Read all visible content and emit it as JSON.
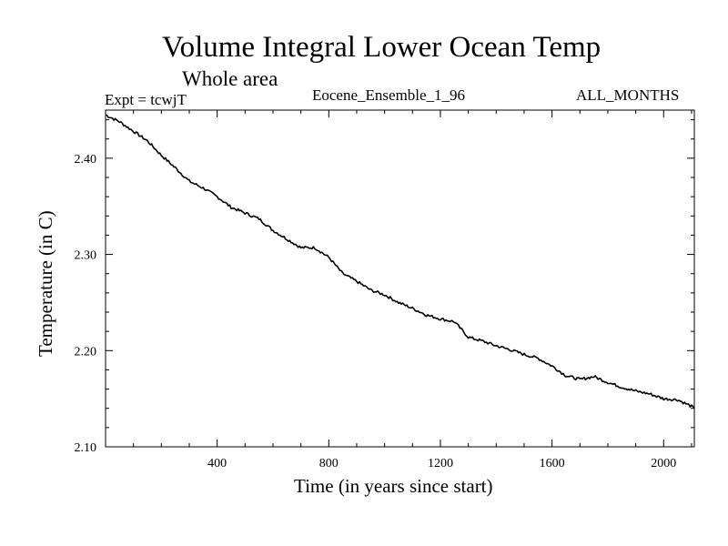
{
  "header": {
    "title": "Volume Integral Lower Ocean Temp",
    "subtitle": "Whole area",
    "expt": "Expt = tcwjT",
    "ensemble": "Eocene_Ensemble_1_96",
    "months": "ALL_MONTHS"
  },
  "chart_data": {
    "type": "line",
    "title": "Volume Integral Lower Ocean Temp",
    "subtitle": "Whole area",
    "xlabel": "Time (in years since start)",
    "ylabel": "Temperature (in C)",
    "xlim": [
      0,
      2110
    ],
    "ylim": [
      2.1,
      2.45
    ],
    "xticks": [
      400,
      800,
      1200,
      1600,
      2000
    ],
    "xtick_labels": [
      "400",
      "800",
      "1200",
      "1600",
      "2000"
    ],
    "yticks": [
      2.1,
      2.2,
      2.3,
      2.4
    ],
    "ytick_labels": [
      "2.10",
      "2.20",
      "2.30",
      "2.40"
    ],
    "grid": false,
    "color": "#000000",
    "series": [
      {
        "x": [
          0,
          50,
          100,
          150,
          200,
          250,
          300,
          350,
          400,
          450,
          500,
          550,
          600,
          650,
          700,
          750,
          800,
          850,
          900,
          950,
          1000,
          1050,
          1100,
          1150,
          1200,
          1250,
          1300,
          1350,
          1400,
          1450,
          1500,
          1550,
          1600,
          1650,
          1700,
          1750,
          1800,
          1850,
          1900,
          1950,
          2000,
          2050,
          2100,
          2110
        ],
        "y": [
          2.445,
          2.438,
          2.428,
          2.418,
          2.403,
          2.39,
          2.376,
          2.369,
          2.36,
          2.349,
          2.343,
          2.337,
          2.325,
          2.316,
          2.307,
          2.307,
          2.297,
          2.28,
          2.272,
          2.263,
          2.258,
          2.25,
          2.244,
          2.237,
          2.233,
          2.23,
          2.214,
          2.21,
          2.205,
          2.201,
          2.196,
          2.192,
          2.184,
          2.174,
          2.17,
          2.173,
          2.167,
          2.162,
          2.158,
          2.155,
          2.15,
          2.149,
          2.142,
          2.14
        ]
      }
    ]
  }
}
